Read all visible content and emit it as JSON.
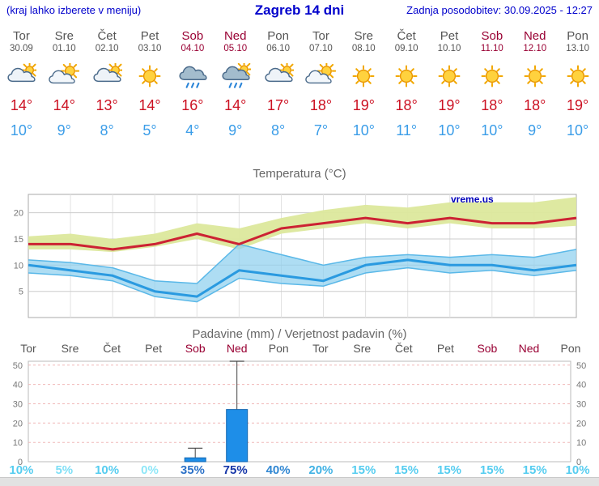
{
  "header": {
    "hint": "(kraj lahko izberete v meniju)",
    "title": "Zagreb 14 dni",
    "updated": "Zadnja posodobitev: 30.09.2025 - 12:27"
  },
  "colors": {
    "accent_blue": "#0000cc",
    "weekday_text": "#555555",
    "weekend_text": "#990033",
    "tmax_text": "#cc1122",
    "tmin_text": "#3b9de8",
    "bar_fill": "#1e8ee8"
  },
  "days": [
    {
      "name": "Tor",
      "date": "30.09",
      "weekend": false,
      "icon": "mostly-cloudy",
      "tmax": "14°",
      "tmin": "10°"
    },
    {
      "name": "Sre",
      "date": "01.10",
      "weekend": false,
      "icon": "partly-cloudy",
      "tmax": "14°",
      "tmin": "9°"
    },
    {
      "name": "Čet",
      "date": "02.10",
      "weekend": false,
      "icon": "mostly-cloudy",
      "tmax": "13°",
      "tmin": "8°"
    },
    {
      "name": "Pet",
      "date": "03.10",
      "weekend": false,
      "icon": "sunny",
      "tmax": "14°",
      "tmin": "5°"
    },
    {
      "name": "Sob",
      "date": "04.10",
      "weekend": true,
      "icon": "rain",
      "tmax": "16°",
      "tmin": "4°"
    },
    {
      "name": "Ned",
      "date": "05.10",
      "weekend": true,
      "icon": "rain-sun",
      "tmax": "14°",
      "tmin": "9°"
    },
    {
      "name": "Pon",
      "date": "06.10",
      "weekend": false,
      "icon": "mostly-cloudy",
      "tmax": "17°",
      "tmin": "8°"
    },
    {
      "name": "Tor",
      "date": "07.10",
      "weekend": false,
      "icon": "partly-cloudy",
      "tmax": "18°",
      "tmin": "7°"
    },
    {
      "name": "Sre",
      "date": "08.10",
      "weekend": false,
      "icon": "sunny",
      "tmax": "19°",
      "tmin": "10°"
    },
    {
      "name": "Čet",
      "date": "09.10",
      "weekend": false,
      "icon": "sunny",
      "tmax": "18°",
      "tmin": "11°"
    },
    {
      "name": "Pet",
      "date": "10.10",
      "weekend": false,
      "icon": "sunny",
      "tmax": "19°",
      "tmin": "10°"
    },
    {
      "name": "Sob",
      "date": "11.10",
      "weekend": true,
      "icon": "sunny",
      "tmax": "18°",
      "tmin": "10°"
    },
    {
      "name": "Ned",
      "date": "12.10",
      "weekend": true,
      "icon": "sunny",
      "tmax": "18°",
      "tmin": "9°"
    },
    {
      "name": "Pon",
      "date": "13.10",
      "weekend": false,
      "icon": "sunny",
      "tmax": "19°",
      "tmin": "10°"
    }
  ],
  "chart_data": [
    {
      "type": "line",
      "title": "Temperatura (°C)",
      "watermark": "vreme.us",
      "x_labels": [
        "Tor",
        "Sre",
        "Čet",
        "Pet",
        "Sob",
        "Ned",
        "Pon",
        "Tor",
        "Sre",
        "Čet",
        "Pet",
        "Sob",
        "Ned",
        "Pon"
      ],
      "ylim": [
        0,
        23.5
      ],
      "yticks": [
        5,
        10,
        15,
        20
      ],
      "series": [
        {
          "name": "max",
          "color": "#cc2233",
          "values": [
            14,
            14,
            13,
            14,
            16,
            14,
            17,
            18,
            19,
            18,
            19,
            18,
            18,
            19
          ]
        },
        {
          "name": "min",
          "color": "#2a9ae0",
          "values": [
            10,
            9,
            8,
            5,
            4,
            9,
            8,
            7,
            10,
            11,
            10,
            10,
            9,
            10
          ]
        },
        {
          "name": "max_upper",
          "values": [
            15.5,
            16,
            15,
            16,
            18,
            17,
            19,
            20.5,
            21.5,
            21,
            22,
            22,
            22,
            23
          ]
        },
        {
          "name": "max_lower",
          "values": [
            13,
            13,
            12.5,
            13.5,
            15,
            13,
            16,
            17,
            18,
            17,
            18,
            17,
            17,
            17.5
          ]
        },
        {
          "name": "min_upper",
          "values": [
            11,
            10.5,
            9.5,
            7,
            6.5,
            14,
            12,
            10,
            11.5,
            12,
            11.5,
            12,
            11.5,
            13
          ]
        },
        {
          "name": "min_lower",
          "values": [
            8.5,
            8,
            7,
            4,
            3,
            7.5,
            6.5,
            6,
            8.5,
            9.5,
            8.5,
            9,
            8,
            9
          ]
        }
      ]
    },
    {
      "type": "bar",
      "title": "Padavine (mm) / Verjetnost padavin (%)",
      "categories": [
        "Tor",
        "Sre",
        "Čet",
        "Pet",
        "Sob",
        "Ned",
        "Pon",
        "Tor",
        "Sre",
        "Čet",
        "Pet",
        "Sob",
        "Ned",
        "Pon"
      ],
      "weekend": [
        false,
        false,
        false,
        false,
        true,
        true,
        false,
        false,
        false,
        false,
        false,
        true,
        true,
        false
      ],
      "values": [
        0,
        0,
        0,
        0,
        2,
        27,
        0,
        0,
        0,
        0,
        0,
        0,
        0,
        0
      ],
      "whisker_high": [
        0,
        0,
        0,
        0,
        7,
        52,
        0,
        0,
        0,
        0,
        0,
        0,
        0,
        0
      ],
      "probabilities": [
        "10%",
        "5%",
        "10%",
        "0%",
        "35%",
        "75%",
        "40%",
        "20%",
        "15%",
        "15%",
        "15%",
        "15%",
        "15%",
        "10%"
      ],
      "prob_colors": [
        "#56cdf0",
        "#7edff6",
        "#56cdf0",
        "#8ee7f8",
        "#2d72c8",
        "#1636a8",
        "#2f86d2",
        "#41b2e4",
        "#56cdf0",
        "#56cdf0",
        "#56cdf0",
        "#56cdf0",
        "#56cdf0",
        "#56cdf0"
      ],
      "ylim": [
        0,
        52
      ],
      "yticks": [
        0,
        10,
        20,
        30,
        40,
        50
      ]
    }
  ]
}
